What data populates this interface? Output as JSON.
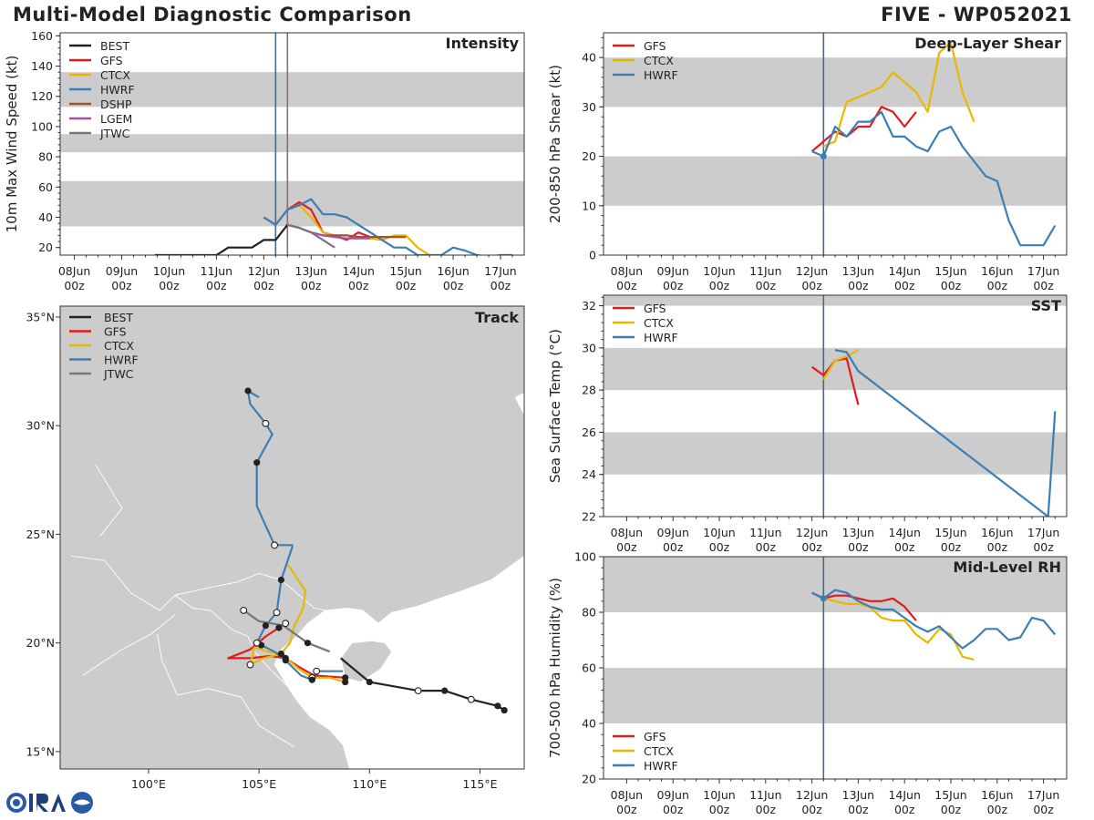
{
  "header": {
    "title": "Multi-Model Diagnostic Comparison",
    "storm": "FIVE - WP052021"
  },
  "colors": {
    "BEST": "#222222",
    "GFS": "#e41a1c",
    "CTCX": "#e6b800",
    "HWRF": "#3a7fb5",
    "DSHP": "#a0522d",
    "LGEM": "#a84fa8",
    "JTWC": "#777777",
    "band": "#cccccc",
    "land": "#cccccc",
    "init_line": "#4a6a88",
    "jtwc_vline": "#8a6d7a"
  },
  "time_ticks": [
    {
      "day": "08Jun",
      "hour": "00z"
    },
    {
      "day": "09Jun",
      "hour": "00z"
    },
    {
      "day": "10Jun",
      "hour": "00z"
    },
    {
      "day": "11Jun",
      "hour": "00z"
    },
    {
      "day": "12Jun",
      "hour": "00z"
    },
    {
      "day": "13Jun",
      "hour": "00z"
    },
    {
      "day": "14Jun",
      "hour": "00z"
    },
    {
      "day": "15Jun",
      "hour": "00z"
    },
    {
      "day": "16Jun",
      "hour": "00z"
    },
    {
      "day": "17Jun",
      "hour": "00z"
    }
  ],
  "chart_data": [
    {
      "id": "intensity",
      "type": "line",
      "title": "Intensity",
      "ylabel": "10m Max Wind Speed (kt)",
      "xlabel": "",
      "xlim": [
        -0.3,
        9.5
      ],
      "ylim": [
        15,
        162
      ],
      "yticks": [
        20,
        40,
        60,
        80,
        100,
        120,
        140,
        160
      ],
      "bands": [
        [
          34,
          64
        ],
        [
          83,
          95
        ],
        [
          113,
          136
        ]
      ],
      "vlines": [
        {
          "x": 4.25,
          "color_key": "init_line"
        },
        {
          "x": 4.5,
          "color_key": "jtwc_vline"
        }
      ],
      "legend": [
        "BEST",
        "GFS",
        "CTCX",
        "HWRF",
        "DSHP",
        "LGEM",
        "JTWC"
      ],
      "series": [
        {
          "name": "BEST",
          "x": [
            1.7,
            2.0,
            2.25,
            2.5,
            2.75,
            3.0,
            3.25,
            3.5,
            3.75,
            4.0,
            4.25,
            4.5
          ],
          "y": [
            15,
            15,
            15,
            15,
            15,
            15,
            20,
            20,
            20,
            25,
            25,
            35
          ]
        },
        {
          "name": "GFS",
          "x": [
            4.0,
            4.25,
            4.5,
            4.75,
            5.0,
            5.25,
            5.5,
            5.75,
            6.0,
            6.25
          ],
          "y": [
            40,
            35,
            45,
            50,
            45,
            30,
            28,
            25,
            30,
            27
          ]
        },
        {
          "name": "CTCX",
          "x": [
            4.25,
            4.5,
            4.75,
            5.0,
            5.25,
            5.5,
            5.75,
            6.0,
            6.25,
            6.5,
            6.75,
            7.0,
            7.25,
            7.5
          ],
          "y": [
            35,
            45,
            48,
            40,
            30,
            28,
            28,
            27,
            26,
            25,
            28,
            28,
            20,
            15
          ]
        },
        {
          "name": "HWRF",
          "x": [
            4.0,
            4.25,
            4.5,
            4.75,
            5.0,
            5.25,
            5.5,
            5.75,
            6.0,
            6.25,
            6.5,
            6.75,
            7.0,
            7.25,
            7.5,
            7.75,
            8.0,
            8.25,
            8.5,
            8.75,
            9.0,
            9.25
          ],
          "y": [
            40,
            35,
            45,
            48,
            52,
            42,
            42,
            40,
            35,
            30,
            25,
            20,
            20,
            15,
            15,
            15,
            20,
            18,
            15,
            14,
            15,
            15
          ]
        },
        {
          "name": "DSHP",
          "x": [
            4.5,
            4.75,
            5.0,
            5.25,
            5.5,
            5.75,
            6.0,
            6.25,
            6.5,
            6.75,
            7.0
          ],
          "y": [
            35,
            33,
            30,
            28,
            28,
            28,
            27,
            27,
            27,
            27,
            27
          ]
        },
        {
          "name": "LGEM",
          "x": [
            4.5,
            4.75,
            5.0,
            5.25,
            5.5,
            5.75,
            6.0,
            6.25
          ],
          "y": [
            35,
            33,
            30,
            28,
            27,
            26,
            26,
            26
          ]
        },
        {
          "name": "JTWC",
          "x": [
            4.5,
            4.75,
            5.0,
            5.25,
            5.5
          ],
          "y": [
            35,
            33,
            30,
            25,
            20
          ]
        }
      ]
    },
    {
      "id": "shear",
      "type": "line",
      "title": "Deep-Layer Shear",
      "ylabel": "200-850 hPa Shear (kt)",
      "xlabel": "",
      "xlim": [
        -0.5,
        9.5
      ],
      "ylim": [
        0,
        45
      ],
      "yticks": [
        0,
        10,
        20,
        30,
        40
      ],
      "bands": [
        [
          10,
          20
        ],
        [
          30,
          40
        ]
      ],
      "vlines": [
        {
          "x": 4.25,
          "color_key": "init_line"
        }
      ],
      "legend": [
        "GFS",
        "CTCX",
        "HWRF"
      ],
      "series": [
        {
          "name": "GFS",
          "x": [
            4.0,
            4.25,
            4.5,
            4.75,
            5.0,
            5.25,
            5.5,
            5.75,
            6.0,
            6.25
          ],
          "y": [
            21,
            23,
            25,
            24,
            26,
            26,
            30,
            29,
            26,
            29
          ]
        },
        {
          "name": "CTCX",
          "x": [
            4.25,
            4.5,
            4.75,
            5.0,
            5.25,
            5.5,
            5.75,
            6.0,
            6.25,
            6.5,
            6.75,
            7.0,
            7.25,
            7.5
          ],
          "y": [
            22,
            23,
            31,
            32,
            33,
            34,
            37,
            35,
            33,
            29,
            41,
            43,
            33,
            27
          ]
        },
        {
          "name": "HWRF",
          "x": [
            4.0,
            4.25,
            4.5,
            4.75,
            5.0,
            5.25,
            5.5,
            5.75,
            6.0,
            6.25,
            6.5,
            6.75,
            7.0,
            7.25,
            7.5,
            7.75,
            8.0,
            8.25,
            8.5,
            8.75,
            9.0,
            9.25
          ],
          "y": [
            21,
            20,
            26,
            24,
            27,
            27,
            29,
            24,
            24,
            22,
            21,
            25,
            26,
            22,
            19,
            16,
            15,
            7,
            2,
            2,
            2,
            6
          ]
        }
      ]
    },
    {
      "id": "sst",
      "type": "line",
      "title": "SST",
      "ylabel": "Sea Surface Temp (°C)",
      "xlabel": "",
      "xlim": [
        -0.5,
        9.5
      ],
      "ylim": [
        22,
        32.5
      ],
      "yticks": [
        22,
        24,
        26,
        28,
        30,
        32
      ],
      "bands": [
        [
          24,
          26
        ],
        [
          28,
          30
        ],
        [
          32,
          32.5
        ]
      ],
      "vlines": [
        {
          "x": 4.25,
          "color_key": "init_line"
        }
      ],
      "legend": [
        "GFS",
        "CTCX",
        "HWRF"
      ],
      "series": [
        {
          "name": "GFS",
          "x": [
            4.0,
            4.25,
            4.5,
            4.75,
            5.0
          ],
          "y": [
            29.1,
            28.7,
            29.4,
            29.5,
            27.3
          ]
        },
        {
          "name": "CTCX",
          "x": [
            4.25,
            4.5,
            4.75,
            5.0
          ],
          "y": [
            28.5,
            29.4,
            29.6,
            29.9
          ]
        },
        {
          "name": "HWRF",
          "x": [
            4.5,
            4.75,
            5.0,
            9.1,
            9.25
          ],
          "y": [
            29.9,
            29.8,
            28.9,
            22.0,
            27.0
          ]
        }
      ]
    },
    {
      "id": "rh",
      "type": "line",
      "title": "Mid-Level RH",
      "ylabel": "700-500 hPa Humidity (%)",
      "xlabel": "",
      "xlim": [
        -0.5,
        9.5
      ],
      "ylim": [
        20,
        100
      ],
      "yticks": [
        20,
        40,
        60,
        80,
        100
      ],
      "bands": [
        [
          40,
          60
        ],
        [
          80,
          100
        ]
      ],
      "vlines": [
        {
          "x": 4.25,
          "color_key": "init_line"
        }
      ],
      "legend": [
        "GFS",
        "CTCX",
        "HWRF"
      ],
      "legend_position": "bottom-left",
      "series": [
        {
          "name": "GFS",
          "x": [
            4.0,
            4.25,
            4.5,
            4.75,
            5.0,
            5.25,
            5.5,
            5.75,
            6.0,
            6.25
          ],
          "y": [
            87,
            85,
            86,
            86,
            85,
            84,
            84,
            85,
            82,
            77
          ]
        },
        {
          "name": "CTCX",
          "x": [
            4.25,
            4.5,
            4.75,
            5.0,
            5.25,
            5.5,
            5.75,
            6.0,
            6.25,
            6.5,
            6.75,
            7.0,
            7.25,
            7.5
          ],
          "y": [
            85,
            84,
            83,
            83,
            82,
            78,
            77,
            77,
            72,
            69,
            74,
            72,
            64,
            63
          ]
        },
        {
          "name": "HWRF",
          "x": [
            4.0,
            4.25,
            4.5,
            4.75,
            5.0,
            5.25,
            5.5,
            5.75,
            6.0,
            6.25,
            6.5,
            6.75,
            7.0,
            7.25,
            7.5,
            7.75,
            8.0,
            8.25,
            8.5,
            8.75,
            9.0,
            9.25
          ],
          "y": [
            87,
            85,
            88,
            87,
            84,
            82,
            81,
            81,
            78,
            75,
            73,
            75,
            71,
            67,
            70,
            74,
            74,
            70,
            71,
            78,
            77,
            72
          ]
        }
      ]
    },
    {
      "id": "track",
      "type": "scatter",
      "title": "Track",
      "xlim": [
        96,
        117
      ],
      "ylim": [
        14.2,
        35.5
      ],
      "xticks": [
        {
          "v": 100,
          "label": "100°E"
        },
        {
          "v": 105,
          "label": "105°E"
        },
        {
          "v": 110,
          "label": "110°E"
        },
        {
          "v": 115,
          "label": "115°E"
        }
      ],
      "yticks": [
        {
          "v": 15,
          "label": "15°N"
        },
        {
          "v": 20,
          "label": "20°N"
        },
        {
          "v": 25,
          "label": "25°N"
        },
        {
          "v": 30,
          "label": "30°N"
        },
        {
          "v": 35,
          "label": "35°N"
        }
      ],
      "legend": [
        "BEST",
        "GFS",
        "CTCX",
        "HWRF",
        "JTWC"
      ],
      "series": [
        {
          "name": "BEST",
          "lon": [
            116.1,
            115.8,
            114.6,
            113.4,
            112.2,
            110.0,
            108.7
          ],
          "lat": [
            16.9,
            17.1,
            17.4,
            17.8,
            17.8,
            18.2,
            19.3
          ],
          "markers": [
            "filled",
            "filled",
            "open",
            "filled",
            "open",
            "filled",
            "none"
          ]
        },
        {
          "name": "GFS",
          "lon": [
            108.9,
            107.5,
            106.8,
            106.2,
            105.5,
            104.6,
            103.6,
            104.6,
            105.3,
            105.9,
            106.2
          ],
          "lat": [
            18.4,
            18.5,
            18.9,
            19.3,
            19.4,
            19.3,
            19.3,
            19.7,
            20.3,
            20.7,
            20.9
          ],
          "markers": [
            "filled",
            "none",
            "none",
            "filled",
            "none",
            "none",
            "none",
            "none",
            "none",
            "filled",
            "open"
          ]
        },
        {
          "name": "CTCX",
          "lon": [
            108.9,
            108.2,
            107.4,
            106.8,
            106.0,
            105.4,
            104.8,
            104.6,
            105.2,
            106.0,
            106.4,
            106.6,
            107.0,
            107.1,
            106.3
          ],
          "lat": [
            18.2,
            18.4,
            18.4,
            18.8,
            19.5,
            19.6,
            19.8,
            19.0,
            19.3,
            19.5,
            20.0,
            20.8,
            21.6,
            22.4,
            23.6
          ],
          "markers": [
            "filled",
            "none",
            "open",
            "none",
            "filled",
            "none",
            "none",
            "open",
            "none",
            "none",
            "none",
            "none",
            "none",
            "none",
            "none"
          ]
        },
        {
          "name": "HWRF",
          "lon": [
            108.8,
            107.6,
            107.4,
            106.9,
            106.2,
            105.7,
            105.1,
            104.9,
            105.3,
            105.8,
            106.0,
            106.5,
            106.5,
            105.7,
            104.9,
            104.9,
            105.6,
            105.3,
            104.6,
            104.5,
            105.0
          ],
          "lat": [
            18.7,
            18.7,
            18.3,
            18.5,
            19.2,
            19.6,
            19.9,
            20.0,
            20.8,
            21.4,
            22.9,
            24.4,
            24.5,
            24.5,
            26.3,
            28.3,
            29.6,
            30.1,
            31.0,
            31.6,
            31.3
          ],
          "markers": [
            "none",
            "open",
            "filled",
            "none",
            "filled",
            "none",
            "filled",
            "open",
            "filled",
            "open",
            "filled",
            "none",
            "none",
            "open",
            "none",
            "filled",
            "none",
            "open",
            "none",
            "filled",
            "none"
          ]
        },
        {
          "name": "JTWC",
          "lon": [
            108.2,
            107.2,
            106.1,
            105.0,
            104.3
          ],
          "lat": [
            19.6,
            20.0,
            20.8,
            21.0,
            21.5
          ],
          "markers": [
            "none",
            "filled",
            "none",
            "none",
            "open"
          ]
        }
      ]
    }
  ]
}
